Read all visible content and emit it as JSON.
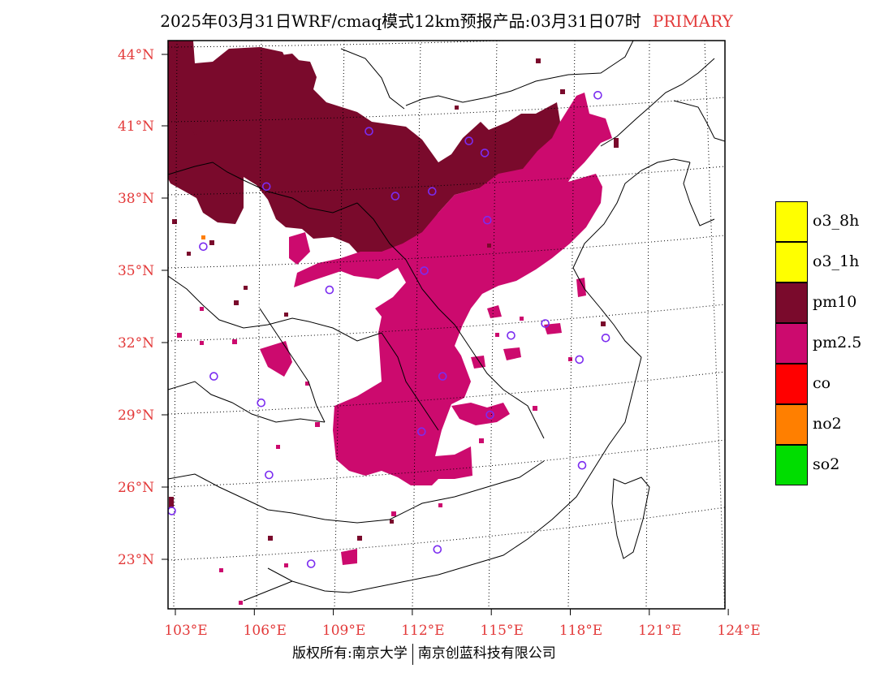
{
  "title": "2025年03月31日WRF/cmaq模式12km预报产品:03月31日07时",
  "title_tag": "PRIMARY",
  "map": {
    "lat_labels": [
      "44°N",
      "41°N",
      "38°N",
      "35°N",
      "32°N",
      "29°N",
      "26°N",
      "23°N"
    ],
    "lon_labels": [
      "103°E",
      "106°E",
      "109°E",
      "112°E",
      "115°E",
      "118°E",
      "121°E",
      "124°E"
    ],
    "label_color": "#e33a3a",
    "stations": [
      {
        "lon": 119.0,
        "lat": 42.3
      },
      {
        "lon": 110.3,
        "lat": 40.8
      },
      {
        "lon": 114.1,
        "lat": 40.4
      },
      {
        "lon": 114.7,
        "lat": 39.9
      },
      {
        "lon": 106.4,
        "lat": 38.5
      },
      {
        "lon": 111.3,
        "lat": 38.1
      },
      {
        "lon": 112.7,
        "lat": 38.3
      },
      {
        "lon": 114.8,
        "lat": 37.1
      },
      {
        "lon": 104.0,
        "lat": 36.0
      },
      {
        "lon": 112.4,
        "lat": 35.0
      },
      {
        "lon": 108.8,
        "lat": 34.2
      },
      {
        "lon": 115.7,
        "lat": 32.3
      },
      {
        "lon": 117.0,
        "lat": 32.8
      },
      {
        "lon": 119.3,
        "lat": 32.2
      },
      {
        "lon": 118.3,
        "lat": 31.3
      },
      {
        "lon": 104.4,
        "lat": 30.6
      },
      {
        "lon": 113.1,
        "lat": 30.6
      },
      {
        "lon": 106.2,
        "lat": 29.5
      },
      {
        "lon": 114.9,
        "lat": 29.0
      },
      {
        "lon": 112.3,
        "lat": 28.3
      },
      {
        "lon": 118.4,
        "lat": 26.9
      },
      {
        "lon": 106.5,
        "lat": 26.5
      },
      {
        "lon": 102.8,
        "lat": 25.0
      },
      {
        "lon": 108.1,
        "lat": 22.8
      },
      {
        "lon": 112.9,
        "lat": 23.4
      }
    ]
  },
  "legend": [
    {
      "label": "o3_8h",
      "color": "#ffff00"
    },
    {
      "label": "o3_1h",
      "color": "#ffff00"
    },
    {
      "label": "pm10",
      "color": "#7a0a2c"
    },
    {
      "label": "pm2.5",
      "color": "#cc0a6e"
    },
    {
      "label": "co",
      "color": "#ff0000"
    },
    {
      "label": "no2",
      "color": "#ff7f00"
    },
    {
      "label": "so2",
      "color": "#00dd00"
    }
  ],
  "footer": {
    "left": "版权所有:南京大学",
    "right": "南京创蓝科技有限公司"
  }
}
